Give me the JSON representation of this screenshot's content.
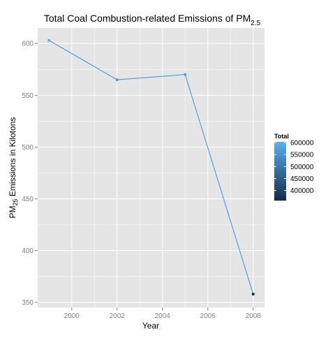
{
  "chart_data": {
    "type": "line",
    "title": "Total Coal Combustion-related Emissions of PM",
    "title_subscript": "2.5",
    "xlabel": "Year",
    "ylabel": "PM",
    "ylabel_subscript": "25",
    "ylabel_suffix": " Emissions in Kilotons",
    "x": [
      1999,
      2002,
      2005,
      2008
    ],
    "y": [
      603,
      565,
      570,
      358
    ],
    "xlim": [
      1998.5,
      2008.5
    ],
    "ylim": [
      345,
      615
    ],
    "x_ticks": [
      2000,
      2002,
      2004,
      2006,
      2008
    ],
    "y_ticks": [
      350,
      400,
      450,
      500,
      550,
      600
    ],
    "grid": true,
    "legend": {
      "title": "Total",
      "position": "right",
      "range": [
        358000,
        603000
      ],
      "ticks": [
        600000,
        550000,
        500000,
        450000,
        400000
      ],
      "colors": {
        "low": "#132B43",
        "high": "#56B1F7"
      }
    },
    "colors": {
      "panel": "#E5E5E5",
      "grid": "#FFFFFF",
      "axis_text": "#7F7F7F"
    }
  }
}
